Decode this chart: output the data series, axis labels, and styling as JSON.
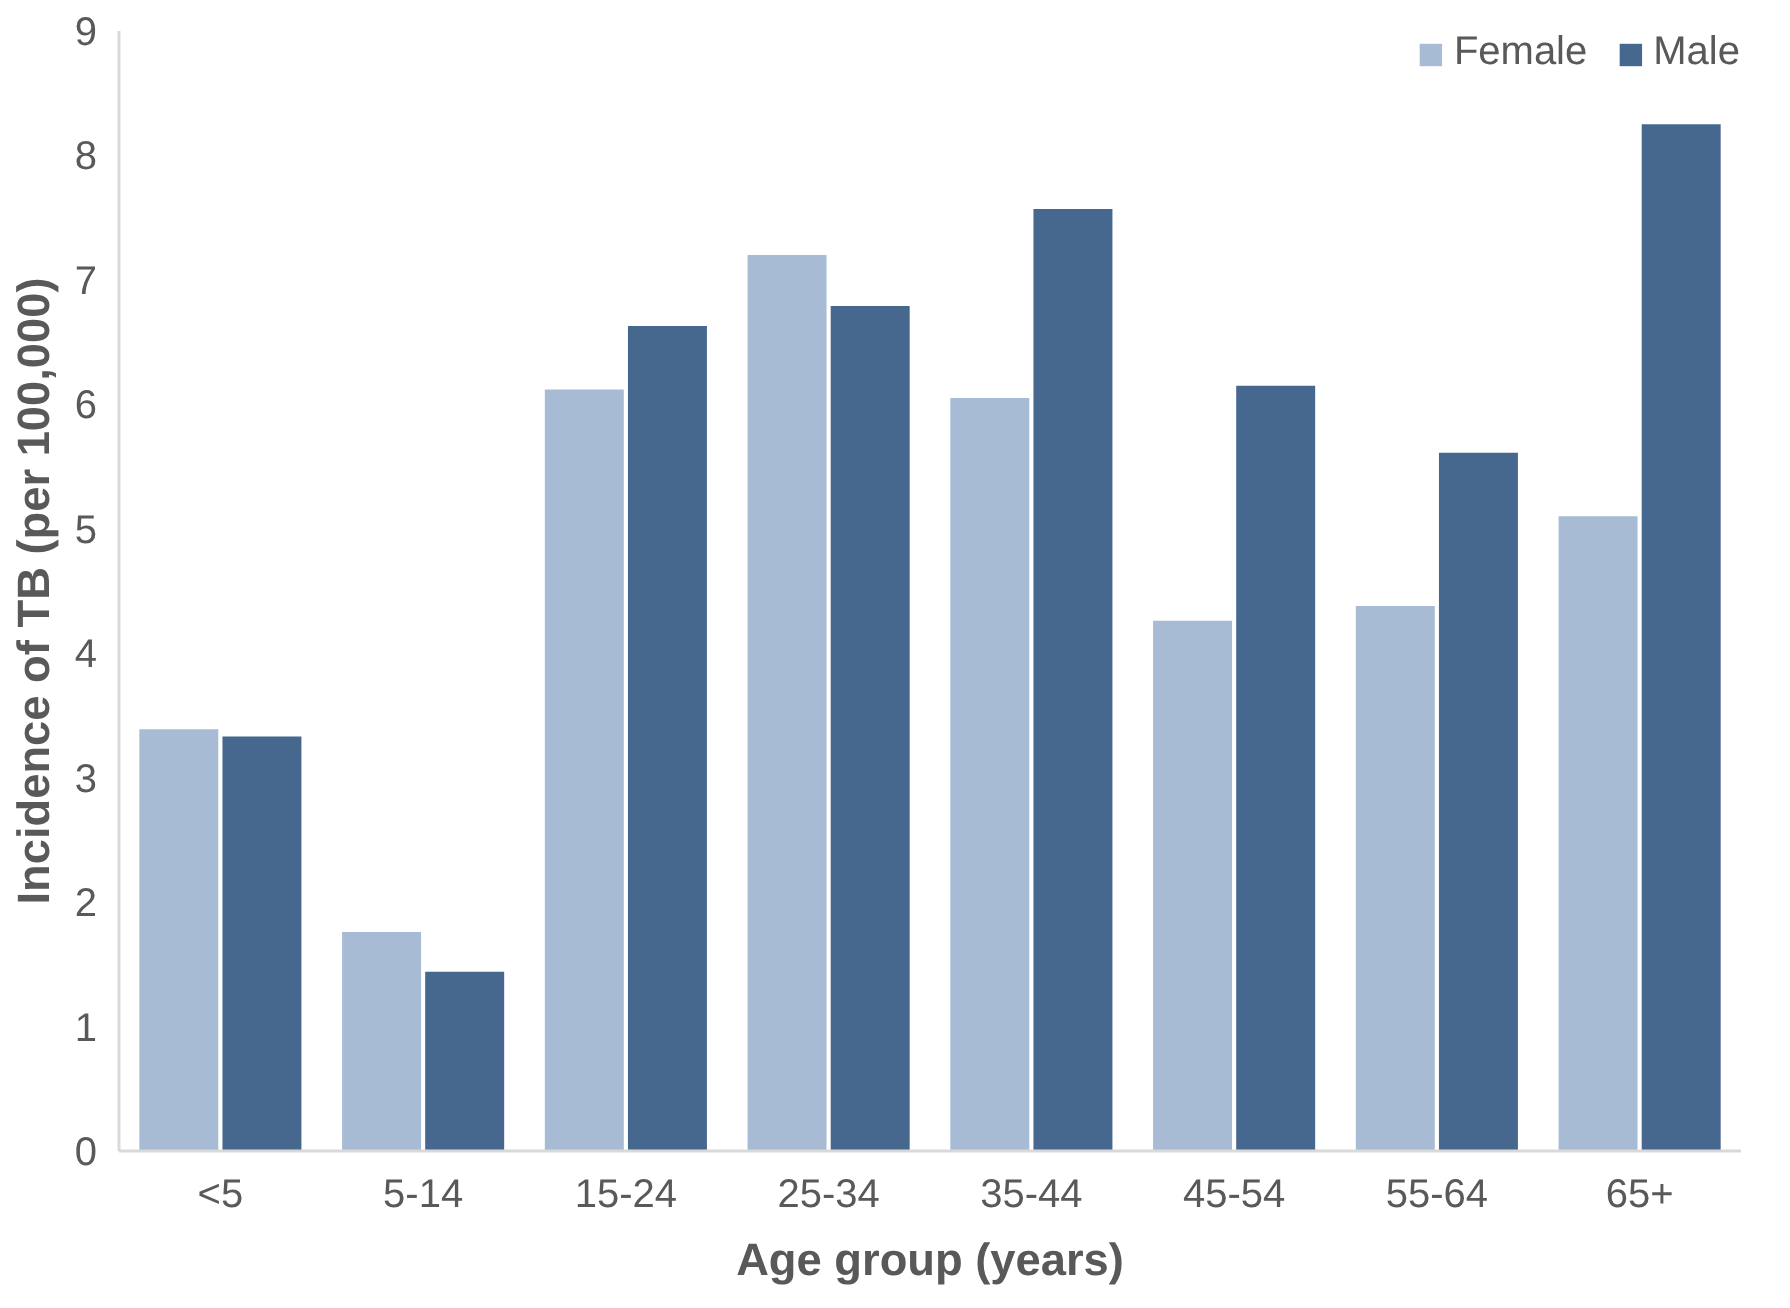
{
  "chart_data": {
    "type": "bar",
    "xlabel": "Age group (years)",
    "ylabel": "Incidence of TB (per 100,000)",
    "categories": [
      "<5",
      "5-14",
      "15-24",
      "25-34",
      "35-44",
      "45-54",
      "55-64",
      "65+"
    ],
    "series": [
      {
        "name": "Female",
        "color": "#a7bbd5",
        "values": [
          3.39,
          1.76,
          6.12,
          7.2,
          6.05,
          4.26,
          4.38,
          5.1
        ]
      },
      {
        "name": "Male",
        "color": "#46688f",
        "values": [
          3.33,
          1.44,
          6.63,
          6.79,
          7.57,
          6.15,
          5.61,
          8.25
        ]
      }
    ],
    "ylim": [
      0,
      9
    ],
    "yticks": [
      0,
      1,
      2,
      3,
      4,
      5,
      6,
      7,
      8,
      9
    ],
    "grid": false,
    "legend": "top right"
  }
}
